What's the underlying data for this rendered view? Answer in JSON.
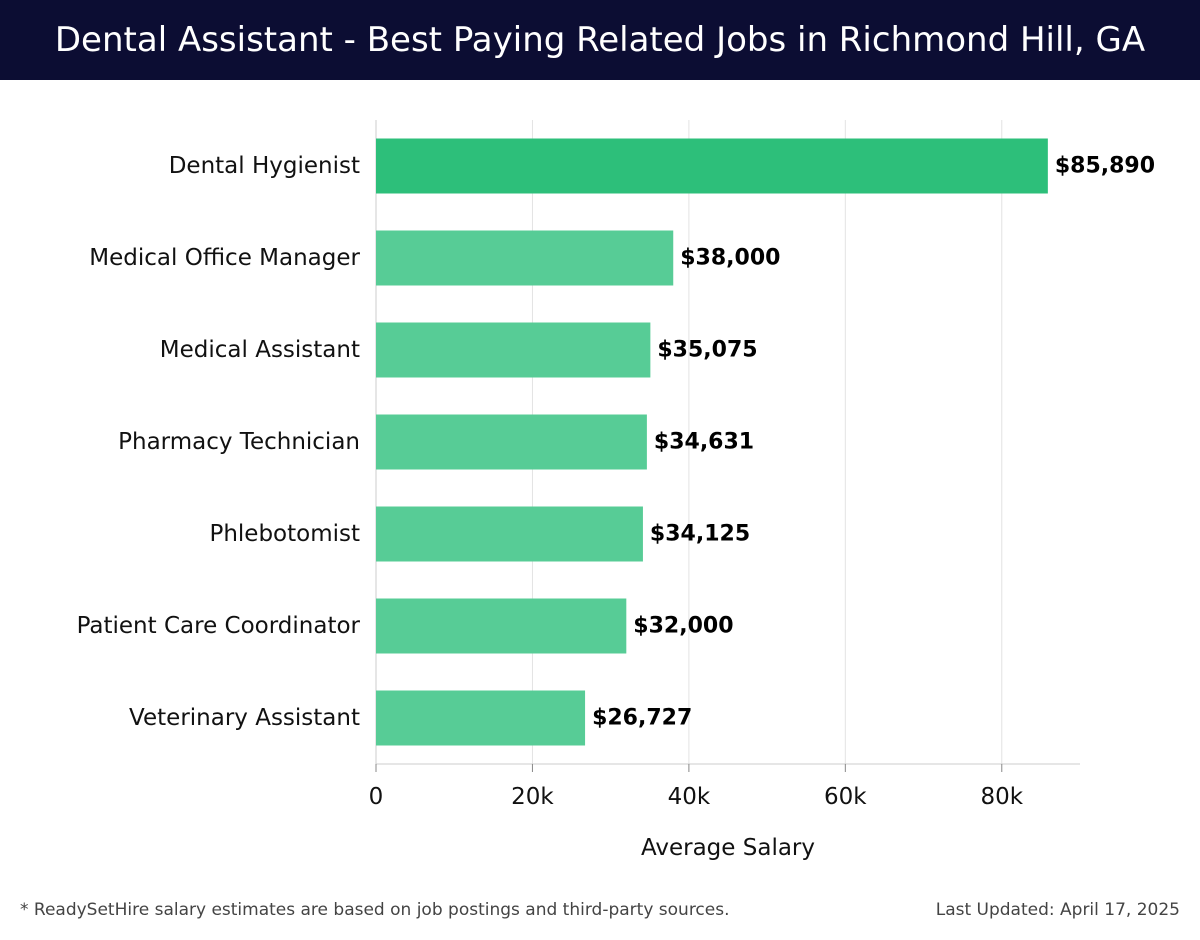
{
  "header": {
    "title": "Dental Assistant - Best Paying Related Jobs in Richmond Hill, GA"
  },
  "chart_data": {
    "type": "bar",
    "orientation": "horizontal",
    "title": "Dental Assistant - Best Paying Related Jobs in Richmond Hill, GA",
    "xlabel": "Average Salary",
    "ylabel": "",
    "categories": [
      "Dental Hygienist",
      "Medical Office Manager",
      "Medical Assistant",
      "Pharmacy Technician",
      "Phlebotomist",
      "Patient Care Coordinator",
      "Veterinary Assistant"
    ],
    "values": [
      85890,
      38000,
      35075,
      34631,
      34125,
      32000,
      26727
    ],
    "value_labels": [
      "$85,890",
      "$38,000",
      "$35,075",
      "$34,631",
      "$34,125",
      "$32,000",
      "$26,727"
    ],
    "xlim": [
      0,
      90000
    ],
    "x_ticks": [
      0,
      20000,
      40000,
      60000,
      80000
    ],
    "x_tick_labels": [
      "0",
      "20k",
      "40k",
      "60k",
      "80k"
    ],
    "grid": true,
    "colors": {
      "top_bar": "#2dbf7a",
      "bar": "#57cc96",
      "grid": "#e3e3e3",
      "axis": "#cccccc"
    }
  },
  "footer": {
    "note": "* ReadySetHire salary estimates are based on job postings and third-party sources.",
    "updated": "Last Updated: April 17, 2025"
  }
}
